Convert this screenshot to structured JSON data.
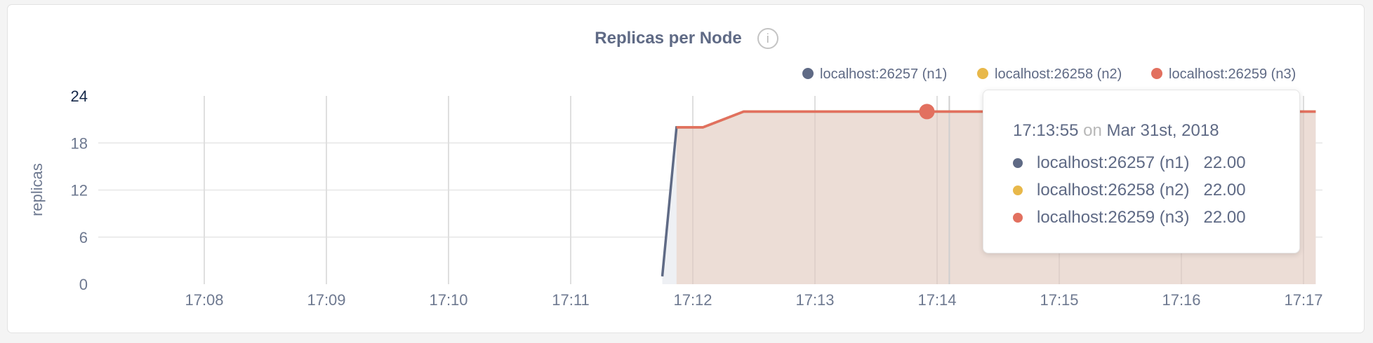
{
  "chart_data": {
    "type": "area",
    "title": "Replicas per Node",
    "ylabel": "replicas",
    "xlabel": "",
    "ylim": [
      0,
      24
    ],
    "yticks": [
      "0",
      "6",
      "12",
      "18",
      "24"
    ],
    "xticks": [
      "17:08",
      "17:09",
      "17:10",
      "17:11",
      "17:12",
      "17:13",
      "17:14",
      "17:15",
      "17:16",
      "17:17"
    ],
    "grid": true,
    "legend_position": "top-right",
    "series": [
      {
        "name": "localhost:26257 (n1)",
        "color": "#5f6a85",
        "points": [
          [
            "17:11:45",
            1
          ],
          [
            "17:11:52",
            20
          ],
          [
            "17:12:05",
            20
          ],
          [
            "17:12:25",
            22
          ],
          [
            "17:17:06",
            22
          ]
        ]
      },
      {
        "name": "localhost:26258 (n2)",
        "color": "#e8b84a",
        "points": [
          [
            "17:11:52",
            20
          ],
          [
            "17:12:05",
            20
          ],
          [
            "17:12:25",
            22
          ],
          [
            "17:17:06",
            22
          ]
        ]
      },
      {
        "name": "localhost:26259 (n3)",
        "color": "#e2705f",
        "points": [
          [
            "17:11:52",
            20
          ],
          [
            "17:12:05",
            20
          ],
          [
            "17:12:25",
            22
          ],
          [
            "17:17:06",
            22
          ]
        ]
      }
    ],
    "hover_time": "17:13:55",
    "cursor_time": "17:14:06"
  },
  "info_icon": "info-icon",
  "tooltip": {
    "time": "17:13:55",
    "on": "on",
    "date": "Mar 31st, 2018",
    "rows": [
      {
        "label": "localhost:26257 (n1)",
        "value": "22.00",
        "color": "#5f6a85"
      },
      {
        "label": "localhost:26258 (n2)",
        "value": "22.00",
        "color": "#e8b84a"
      },
      {
        "label": "localhost:26259 (n3)",
        "value": "22.00",
        "color": "#e2705f"
      }
    ]
  }
}
